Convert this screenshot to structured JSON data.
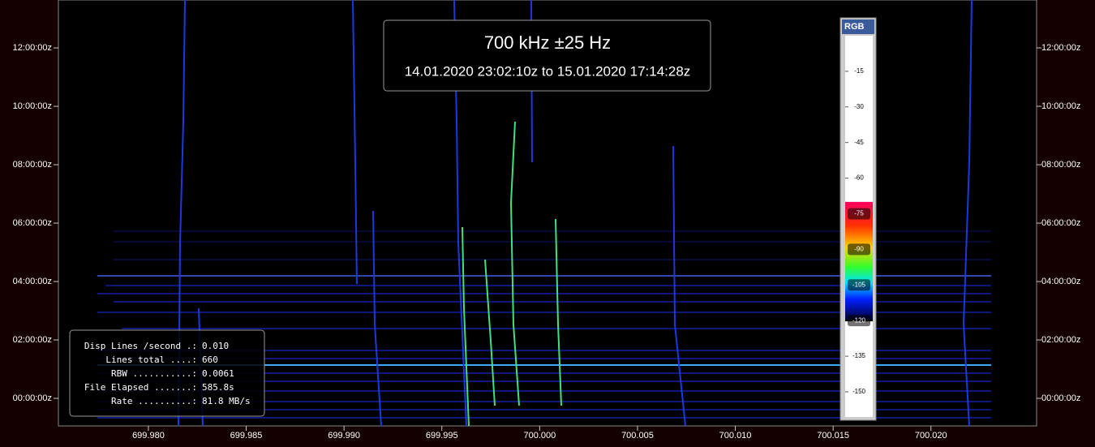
{
  "chart_data": {
    "type": "waterfall",
    "title": "700 kHz ±25 Hz",
    "subtitle": "14.01.2020 23:02:10z to 15.01.2020 17:14:28z",
    "xlim": [
      699.9754,
      700.0254
    ],
    "xticks": [
      {
        "value": 699.98,
        "label": "699.980"
      },
      {
        "value": 699.985,
        "label": "699.985"
      },
      {
        "value": 699.99,
        "label": "699.990"
      },
      {
        "value": 699.995,
        "label": "699.995"
      },
      {
        "value": 700.0,
        "label": "700.000"
      },
      {
        "value": 700.005,
        "label": "700.005"
      },
      {
        "value": 700.01,
        "label": "700.010"
      },
      {
        "value": 700.015,
        "label": "700.015"
      },
      {
        "value": 700.02,
        "label": "700.020"
      }
    ],
    "ylim": [
      -0.944,
      13.64
    ],
    "yticks": [
      {
        "value": 0,
        "label": "00:00:00z"
      },
      {
        "value": 2,
        "label": "02:00:00z"
      },
      {
        "value": 4,
        "label": "04:00:00z"
      },
      {
        "value": 6,
        "label": "06:00:00z"
      },
      {
        "value": 8,
        "label": "08:00:00z"
      },
      {
        "value": 10,
        "label": "10:00:00z"
      },
      {
        "value": 12,
        "label": "12:00:00z"
      }
    ],
    "colorbar": {
      "label": "RGB",
      "lim": [
        0,
        -160.6
      ],
      "ticks": [
        -15,
        -30,
        -45,
        -60,
        -75,
        -90,
        -105,
        -120,
        -135,
        -150
      ],
      "colored_range": [
        -70,
        -120
      ]
    },
    "info": [
      {
        "label": "Disp Lines /second .:",
        "value": "0.010"
      },
      {
        "label": "Lines total ....:",
        "value": "660"
      },
      {
        "label": "RBW ...........:",
        "value": "0.0061"
      },
      {
        "label": "File Elapsed .......:",
        "value": "585.8s"
      },
      {
        "label": "Rate ..........:",
        "value": "81.8 MB/s"
      }
    ]
  }
}
